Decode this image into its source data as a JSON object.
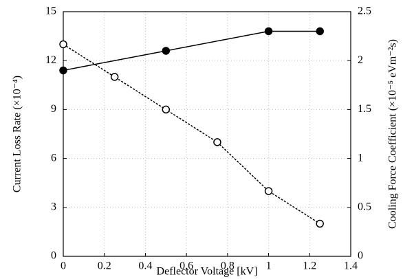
{
  "chart_data": {
    "type": "line",
    "xlabel": "Deflector Voltage [kV]",
    "ylabel": "Current Loss Rate (×10⁻⁴)",
    "y2label": "Cooling Force Coefficient (×10⁻⁵ eVm⁻²s)",
    "xlim": [
      0,
      1.4
    ],
    "xticks": [
      0,
      0.2,
      0.4,
      0.6,
      0.8,
      1,
      1.2,
      1.4
    ],
    "ylim": [
      0,
      15
    ],
    "yticks": [
      0,
      3,
      6,
      9,
      12,
      15
    ],
    "y2lim": [
      0,
      2.5
    ],
    "y2ticks": [
      0,
      0.5,
      1,
      1.5,
      2,
      2.5
    ],
    "grid": true,
    "series": [
      {
        "color": "#000000",
        "marker": "filled",
        "line": "solid",
        "axis": "y2",
        "x": [
          0,
          0.5,
          1,
          1.25
        ],
        "values": [
          1.9,
          2.1,
          2.3,
          2.3
        ]
      },
      {
        "color": "#000000",
        "marker": "open",
        "line": "dashed",
        "axis": "y",
        "x": [
          0,
          0.25,
          0.5,
          0.75,
          1,
          1.25
        ],
        "values": [
          13,
          11,
          9,
          7,
          4,
          2
        ]
      }
    ]
  }
}
